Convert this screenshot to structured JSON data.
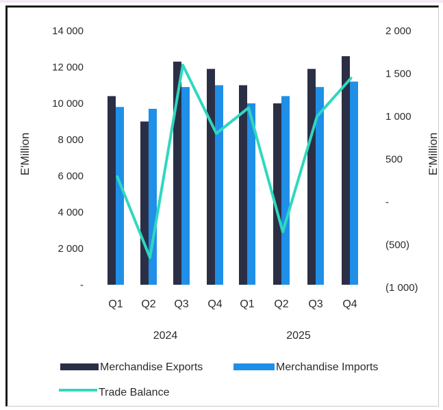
{
  "chart_data": {
    "type": "bar",
    "title": "",
    "ylabel": "E'Million",
    "y2label": "E'Million",
    "ylim": [
      0,
      14000
    ],
    "y2lim": [
      -1000,
      2000
    ],
    "yticks": [
      "-",
      "2 000",
      "4 000",
      "6 000",
      "8 000",
      "10 000",
      "12 000",
      "14 000"
    ],
    "y2ticks": [
      "(1 000)",
      "(500)",
      "-",
      "500",
      "1 000",
      "1 500",
      "2 000"
    ],
    "categories": [
      "Q1",
      "Q2",
      "Q3",
      "Q4",
      "Q1",
      "Q2",
      "Q3",
      "Q4"
    ],
    "groups": [
      {
        "label": "2024",
        "span": [
          0,
          3
        ]
      },
      {
        "label": "2025",
        "span": [
          4,
          7
        ]
      }
    ],
    "series": [
      {
        "name": "Merchandise Exports",
        "kind": "bar",
        "axis": "left",
        "color": "#2b2f45",
        "values": [
          10400,
          9000,
          12300,
          11900,
          11000,
          10000,
          11900,
          12600
        ]
      },
      {
        "name": "Merchandise Imports",
        "kind": "bar",
        "axis": "left",
        "color": "#1f8fe8",
        "values": [
          9800,
          9700,
          10900,
          11000,
          10000,
          10400,
          10900,
          11200
        ]
      },
      {
        "name": "Trade Balance",
        "kind": "line",
        "axis": "right",
        "color": "#2ed8c0",
        "values": [
          300,
          -650,
          1600,
          800,
          1100,
          -350,
          1000,
          1450
        ]
      }
    ],
    "legend": "bottom",
    "grid": false
  }
}
